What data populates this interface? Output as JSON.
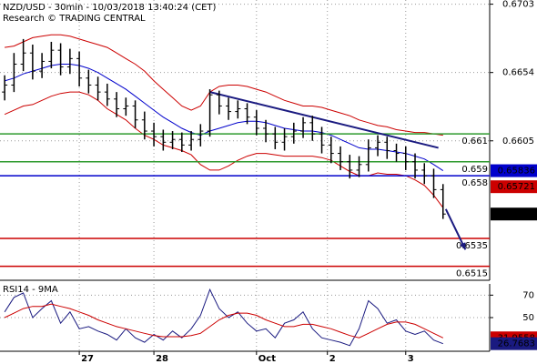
{
  "chart_data": [
    {
      "type": "ohlc",
      "title": "NZD/USD - 30min - 10/03/2018 13:40:24 (CET)",
      "subtitle": "Research © TRADING CENTRAL",
      "xlim": [
        -0.5,
        52
      ],
      "ylim": [
        0.6505,
        0.6706
      ],
      "yticks": [
        0.6703,
        0.6654,
        0.6605
      ],
      "grid": true,
      "color": "#000000",
      "open": [
        0.664,
        0.6645,
        0.666,
        0.6668,
        0.6655,
        0.6662,
        0.667,
        0.6658,
        0.6664,
        0.665,
        0.6645,
        0.664,
        0.6635,
        0.6628,
        0.663,
        0.662,
        0.6612,
        0.6608,
        0.6604,
        0.6606,
        0.6602,
        0.6606,
        0.6612,
        0.6638,
        0.663,
        0.6626,
        0.6628,
        0.6622,
        0.6614,
        0.661,
        0.6604,
        0.6608,
        0.6612,
        0.6618,
        0.661,
        0.6602,
        0.6596,
        0.659,
        0.6584,
        0.6588,
        0.66,
        0.6604,
        0.6598,
        0.6596,
        0.659,
        0.6584,
        0.658,
        0.657
      ],
      "high": [
        0.6652,
        0.6668,
        0.6678,
        0.6674,
        0.6668,
        0.6676,
        0.6675,
        0.6671,
        0.6669,
        0.6656,
        0.6651,
        0.6646,
        0.664,
        0.6636,
        0.6634,
        0.6626,
        0.6618,
        0.6613,
        0.6612,
        0.6611,
        0.6612,
        0.6617,
        0.6642,
        0.6641,
        0.6636,
        0.6634,
        0.6632,
        0.6627,
        0.662,
        0.6615,
        0.6614,
        0.6618,
        0.6622,
        0.6623,
        0.6615,
        0.6608,
        0.6601,
        0.6595,
        0.6594,
        0.6606,
        0.6609,
        0.6608,
        0.6603,
        0.6601,
        0.6596,
        0.6589,
        0.6585,
        0.6574
      ],
      "low": [
        0.6634,
        0.664,
        0.6655,
        0.6649,
        0.665,
        0.6657,
        0.6652,
        0.6653,
        0.6644,
        0.6639,
        0.6634,
        0.663,
        0.6622,
        0.6623,
        0.6614,
        0.6606,
        0.6601,
        0.6598,
        0.6599,
        0.6597,
        0.6598,
        0.6601,
        0.6608,
        0.6624,
        0.662,
        0.6621,
        0.6617,
        0.6609,
        0.6604,
        0.6599,
        0.6598,
        0.6603,
        0.6607,
        0.6605,
        0.6596,
        0.6589,
        0.6584,
        0.6578,
        0.6579,
        0.6583,
        0.6594,
        0.6592,
        0.659,
        0.6584,
        0.6578,
        0.6574,
        0.6564,
        0.6549
      ],
      "close": [
        0.6645,
        0.666,
        0.6668,
        0.6655,
        0.6662,
        0.667,
        0.6658,
        0.6664,
        0.665,
        0.6645,
        0.664,
        0.6635,
        0.6628,
        0.663,
        0.662,
        0.6612,
        0.6608,
        0.6604,
        0.6606,
        0.6602,
        0.6606,
        0.6612,
        0.6638,
        0.663,
        0.6626,
        0.6628,
        0.6622,
        0.6614,
        0.661,
        0.6604,
        0.6608,
        0.6612,
        0.6618,
        0.661,
        0.6602,
        0.6596,
        0.659,
        0.6584,
        0.6588,
        0.66,
        0.6604,
        0.6598,
        0.6596,
        0.659,
        0.6584,
        0.658,
        0.657,
        0.65525
      ],
      "overlays": [
        {
          "color": "#cc0000",
          "values": [
            0.6672,
            0.6673,
            0.6676,
            0.6679,
            0.668,
            0.6681,
            0.6681,
            0.668,
            0.6678,
            0.6676,
            0.6674,
            0.6672,
            0.6668,
            0.6664,
            0.666,
            0.6655,
            0.6648,
            0.6642,
            0.6636,
            0.663,
            0.6627,
            0.663,
            0.664,
            0.6644,
            0.6645,
            0.6645,
            0.6644,
            0.6642,
            0.664,
            0.6637,
            0.6634,
            0.6632,
            0.663,
            0.663,
            0.6629,
            0.6627,
            0.6625,
            0.6623,
            0.662,
            0.6618,
            0.6616,
            0.6615,
            0.6613,
            0.6612,
            0.6611,
            0.6611,
            0.661,
            0.6609
          ]
        },
        {
          "color": "#cc0000",
          "values": [
            0.6624,
            0.6627,
            0.663,
            0.6631,
            0.6634,
            0.6637,
            0.6639,
            0.664,
            0.664,
            0.6638,
            0.6634,
            0.6628,
            0.6624,
            0.662,
            0.6614,
            0.6609,
            0.6606,
            0.6602,
            0.66,
            0.6598,
            0.6595,
            0.6588,
            0.6584,
            0.6584,
            0.6587,
            0.6591,
            0.6594,
            0.6596,
            0.6596,
            0.6595,
            0.6594,
            0.6594,
            0.6594,
            0.6594,
            0.6593,
            0.6591,
            0.6587,
            0.6583,
            0.658,
            0.658,
            0.6582,
            0.6581,
            0.6581,
            0.658,
            0.6577,
            0.6573,
            0.6566,
            0.6557
          ]
        },
        {
          "color": "#0000cc",
          "values": [
            0.6648,
            0.665,
            0.6653,
            0.6655,
            0.6657,
            0.6659,
            0.666,
            0.666,
            0.6659,
            0.6657,
            0.6654,
            0.665,
            0.6646,
            0.6642,
            0.6637,
            0.6632,
            0.6627,
            0.6622,
            0.6618,
            0.6614,
            0.6611,
            0.6609,
            0.6612,
            0.6614,
            0.6616,
            0.6618,
            0.6619,
            0.6619,
            0.6618,
            0.6616,
            0.6614,
            0.6613,
            0.6612,
            0.6612,
            0.6611,
            0.6609,
            0.6606,
            0.6603,
            0.66,
            0.6599,
            0.6599,
            0.6598,
            0.6597,
            0.6596,
            0.6594,
            0.6592,
            0.6588,
            0.65836
          ]
        }
      ],
      "levels": [
        {
          "value": 0.661,
          "color": "#2e9a2e"
        },
        {
          "value": 0.659,
          "color": "#2e9a2e"
        },
        {
          "value": 0.658,
          "color": "#0000cc"
        },
        {
          "value": 0.6535,
          "color": "#cc0000"
        },
        {
          "value": 0.6515,
          "color": "#cc0000"
        }
      ],
      "trendline": {
        "x": [
          22,
          46.5
        ],
        "values": [
          0.664,
          0.66
        ],
        "color": "#1a1a80"
      },
      "arrow": {
        "x": [
          47.3,
          49.4
        ],
        "values": [
          0.6556,
          0.6527
        ],
        "color": "#1a1a80"
      },
      "price_tags": [
        {
          "value": 0.65836,
          "color": "#0000cc"
        },
        {
          "value": 0.65721,
          "color": "#cc0000"
        }
      ],
      "last_tag_color": "#000000"
    },
    {
      "type": "line",
      "title": "RSI14 - 9MA",
      "xlim": [
        -0.5,
        52
      ],
      "ylim": [
        20,
        80
      ],
      "yticks": [
        70,
        50
      ],
      "grid": true,
      "xticks": [
        {
          "value": 8,
          "label": "27"
        },
        {
          "value": 16,
          "label": "28"
        },
        {
          "value": 27,
          "label": "Oct"
        },
        {
          "value": 34.6,
          "label": "2"
        },
        {
          "value": 43,
          "label": "3"
        }
      ],
      "series": [
        {
          "color": "#1a1a80",
          "values": [
            55,
            68,
            72,
            50,
            58,
            65,
            45,
            55,
            40,
            42,
            38,
            35,
            30,
            40,
            32,
            28,
            35,
            30,
            38,
            32,
            40,
            52,
            75,
            58,
            50,
            55,
            45,
            38,
            40,
            32,
            45,
            48,
            55,
            40,
            32,
            30,
            28,
            25,
            40,
            65,
            58,
            45,
            48,
            38,
            35,
            38,
            30,
            26.7683
          ]
        },
        {
          "color": "#cc0000",
          "values": [
            50,
            54,
            58,
            60,
            60,
            62,
            60,
            58,
            55,
            52,
            48,
            45,
            42,
            40,
            38,
            36,
            34,
            33,
            33,
            33,
            34,
            36,
            42,
            48,
            52,
            54,
            54,
            52,
            48,
            45,
            42,
            42,
            44,
            44,
            42,
            40,
            37,
            34,
            32,
            36,
            40,
            44,
            46,
            46,
            44,
            40,
            36,
            31.9558
          ]
        }
      ]
    }
  ]
}
